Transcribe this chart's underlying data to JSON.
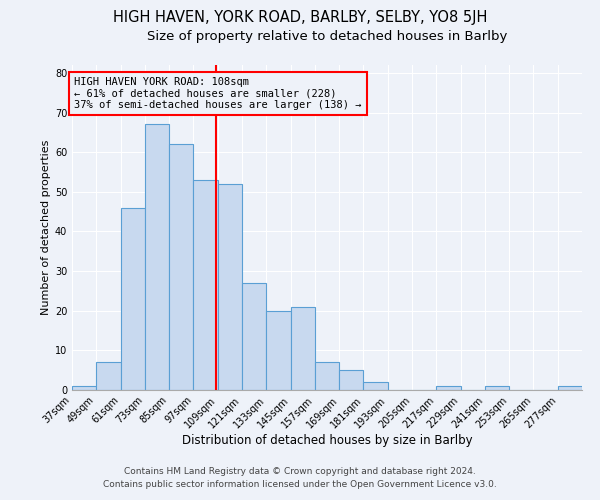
{
  "title1": "HIGH HAVEN, YORK ROAD, BARLBY, SELBY, YO8 5JH",
  "title2": "Size of property relative to detached houses in Barlby",
  "xlabel": "Distribution of detached houses by size in Barlby",
  "ylabel": "Number of detached properties",
  "bin_labels": [
    "37sqm",
    "49sqm",
    "61sqm",
    "73sqm",
    "85sqm",
    "97sqm",
    "109sqm",
    "121sqm",
    "133sqm",
    "145sqm",
    "157sqm",
    "169sqm",
    "181sqm",
    "193sqm",
    "205sqm",
    "217sqm",
    "229sqm",
    "241sqm",
    "253sqm",
    "265sqm",
    "277sqm"
  ],
  "bin_edges": [
    37,
    49,
    61,
    73,
    85,
    97,
    109,
    121,
    133,
    145,
    157,
    169,
    181,
    193,
    205,
    217,
    229,
    241,
    253,
    265,
    277,
    289
  ],
  "bar_heights": [
    1,
    7,
    46,
    67,
    62,
    53,
    52,
    27,
    20,
    21,
    7,
    5,
    2,
    0,
    0,
    1,
    0,
    1,
    0,
    0,
    1
  ],
  "bar_color": "#c8d9ef",
  "bar_edge_color": "#5a9fd4",
  "ref_line_x": 108,
  "ref_line_color": "red",
  "annotation_line1": "HIGH HAVEN YORK ROAD: 108sqm",
  "annotation_line2": "← 61% of detached houses are smaller (228)",
  "annotation_line3": "37% of semi-detached houses are larger (138) →",
  "box_edge_color": "red",
  "ylim": [
    0,
    82
  ],
  "yticks": [
    0,
    10,
    20,
    30,
    40,
    50,
    60,
    70,
    80
  ],
  "footer1": "Contains HM Land Registry data © Crown copyright and database right 2024.",
  "footer2": "Contains public sector information licensed under the Open Government Licence v3.0.",
  "bg_color": "#eef2f9",
  "grid_color": "#ffffff",
  "title1_fontsize": 10.5,
  "title2_fontsize": 9.5,
  "xlabel_fontsize": 8.5,
  "ylabel_fontsize": 8,
  "tick_fontsize": 7,
  "footer_fontsize": 6.5,
  "ann_fontsize": 7.5
}
